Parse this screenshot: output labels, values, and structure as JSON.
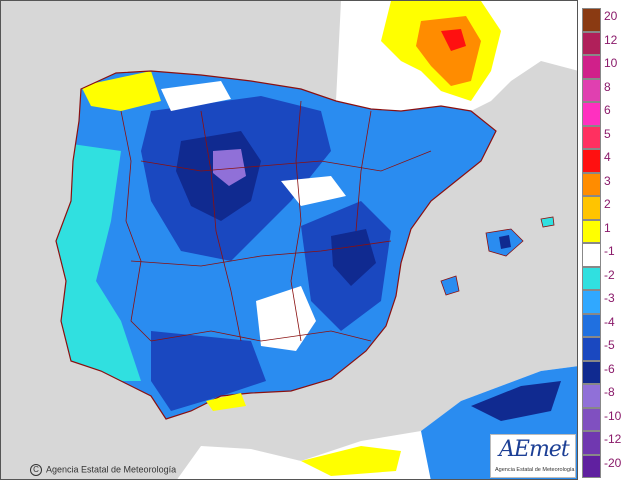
{
  "legend": {
    "items": [
      {
        "label": "20",
        "color": "#8a3a12"
      },
      {
        "label": "12",
        "color": "#b0205a"
      },
      {
        "label": "10",
        "color": "#d0208a"
      },
      {
        "label": "8",
        "color": "#e040b0"
      },
      {
        "label": "6",
        "color": "#ff30c0"
      },
      {
        "label": "5",
        "color": "#ff3060"
      },
      {
        "label": "4",
        "color": "#ff1010"
      },
      {
        "label": "3",
        "color": "#ff8c00"
      },
      {
        "label": "2",
        "color": "#ffc400"
      },
      {
        "label": "1",
        "color": "#ffff00"
      },
      {
        "label": "-1",
        "color": "#ffffff"
      },
      {
        "label": "-2",
        "color": "#30e0e0"
      },
      {
        "label": "-3",
        "color": "#30a8ff"
      },
      {
        "label": "-4",
        "color": "#2070e0"
      },
      {
        "label": "-5",
        "color": "#1a48c0"
      },
      {
        "label": "-6",
        "color": "#102a90"
      },
      {
        "label": "-8",
        "color": "#9070d8"
      },
      {
        "label": "-10",
        "color": "#8050c0"
      },
      {
        "label": "-12",
        "color": "#7038b0"
      },
      {
        "label": "-20",
        "color": "#6020a0"
      }
    ]
  },
  "colors": {
    "background": "#d7d7d7",
    "land_base": "#2a8cf0",
    "border": "#8a1010"
  },
  "copyright": {
    "symbol": "C",
    "text": "Agencia Estatal de Meteorología"
  },
  "logo": {
    "mark": "AEmet",
    "subtitle": "Agencia Estatal de Meteorología"
  }
}
